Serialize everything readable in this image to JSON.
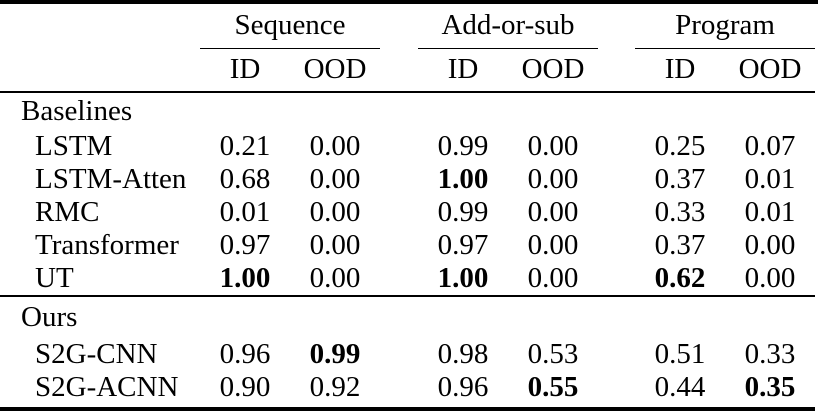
{
  "table": {
    "column_groups": [
      {
        "label": "Sequence"
      },
      {
        "label": "Add-or-sub"
      },
      {
        "label": "Program"
      }
    ],
    "sub_headers": {
      "id": "ID",
      "ood": "OOD"
    },
    "sections": [
      {
        "label": "Baselines",
        "rows": [
          {
            "method": "LSTM",
            "values": [
              "0.21",
              "0.00",
              "0.99",
              "0.00",
              "0.25",
              "0.07"
            ],
            "bold": [
              false,
              false,
              false,
              false,
              false,
              false
            ]
          },
          {
            "method": "LSTM-Atten",
            "values": [
              "0.68",
              "0.00",
              "1.00",
              "0.00",
              "0.37",
              "0.01"
            ],
            "bold": [
              false,
              false,
              true,
              false,
              false,
              false
            ]
          },
          {
            "method": "RMC",
            "values": [
              "0.01",
              "0.00",
              "0.99",
              "0.00",
              "0.33",
              "0.01"
            ],
            "bold": [
              false,
              false,
              false,
              false,
              false,
              false
            ]
          },
          {
            "method": "Transformer",
            "values": [
              "0.97",
              "0.00",
              "0.97",
              "0.00",
              "0.37",
              "0.00"
            ],
            "bold": [
              false,
              false,
              false,
              false,
              false,
              false
            ]
          },
          {
            "method": "UT",
            "values": [
              "1.00",
              "0.00",
              "1.00",
              "0.00",
              "0.62",
              "0.00"
            ],
            "bold": [
              true,
              false,
              true,
              false,
              true,
              false
            ]
          }
        ]
      },
      {
        "label": "Ours",
        "rows": [
          {
            "method": "S2G-CNN",
            "values": [
              "0.96",
              "0.99",
              "0.98",
              "0.53",
              "0.51",
              "0.33"
            ],
            "bold": [
              false,
              true,
              false,
              false,
              false,
              false
            ]
          },
          {
            "method": "S2G-ACNN",
            "values": [
              "0.90",
              "0.92",
              "0.96",
              "0.55",
              "0.44",
              "0.35"
            ],
            "bold": [
              false,
              false,
              false,
              true,
              false,
              true
            ]
          }
        ]
      }
    ],
    "colors": {
      "text": "#000000",
      "background": "#ffffff",
      "rule": "#000000"
    }
  }
}
